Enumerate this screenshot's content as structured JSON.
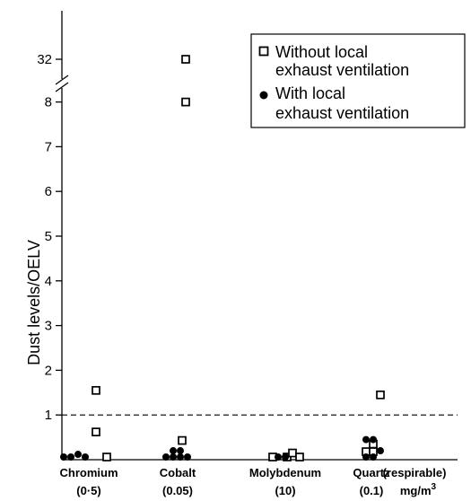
{
  "chart_data": {
    "type": "scatter",
    "ylabel": "Dust levels/OELV",
    "y_axis_break": {
      "below": 8,
      "above": 32
    },
    "yticks": [
      "1",
      "2",
      "3",
      "4",
      "5",
      "6",
      "7",
      "8",
      "32"
    ],
    "reference_line": {
      "y": 1,
      "style": "dashed"
    },
    "categories": [
      {
        "name": "Chromium",
        "oelv": "(0·5)"
      },
      {
        "name": "Cobalt",
        "oelv": "(0.05)"
      },
      {
        "name": "Molybdenum",
        "oelv": "(10)"
      },
      {
        "name": "Quartz",
        "oelv": "(0.1)"
      }
    ],
    "extra_category_note": "(respirable)",
    "unit": "mg/m",
    "unit_superscript": "3",
    "legend": {
      "position": "top-right",
      "without": {
        "line1": "Without local",
        "line2": "exhaust ventilation"
      },
      "with": {
        "line1": "With local",
        "line2": "exhaust ventilation"
      }
    },
    "series": [
      {
        "name": "Without local exhaust ventilation",
        "marker": "open-square",
        "points": [
          {
            "category": "Chromium",
            "y": 1.55
          },
          {
            "category": "Chromium",
            "y": 0.62
          },
          {
            "category": "Chromium",
            "y": 0.02
          },
          {
            "category": "Cobalt",
            "y": 32
          },
          {
            "category": "Cobalt",
            "y": 8
          },
          {
            "category": "Cobalt",
            "y": 0.43
          },
          {
            "category": "Molybdenum",
            "y": 0.02
          },
          {
            "category": "Molybdenum",
            "y": 0.02
          },
          {
            "category": "Molybdenum",
            "y": 0.15
          },
          {
            "category": "Molybdenum",
            "y": 0.02
          },
          {
            "category": "Quartz",
            "y": 1.45
          },
          {
            "category": "Quartz",
            "y": 0.35
          },
          {
            "category": "Quartz",
            "y": 0.18
          },
          {
            "category": "Quartz",
            "y": 0.18
          }
        ]
      },
      {
        "name": "With local exhaust ventilation",
        "marker": "filled-circle",
        "points": [
          {
            "category": "Chromium",
            "y": 0.02
          },
          {
            "category": "Chromium",
            "y": 0.02
          },
          {
            "category": "Chromium",
            "y": 0.12
          },
          {
            "category": "Chromium",
            "y": 0.02
          },
          {
            "category": "Cobalt",
            "y": 0.02
          },
          {
            "category": "Cobalt",
            "y": 0.02
          },
          {
            "category": "Cobalt",
            "y": 0.02
          },
          {
            "category": "Cobalt",
            "y": 0.02
          },
          {
            "category": "Cobalt",
            "y": 0.2
          },
          {
            "category": "Cobalt",
            "y": 0.2
          },
          {
            "category": "Molybdenum",
            "y": 0.02
          },
          {
            "category": "Molybdenum",
            "y": 0.02
          },
          {
            "category": "Quartz",
            "y": 0.45
          },
          {
            "category": "Quartz",
            "y": 0.45
          },
          {
            "category": "Quartz",
            "y": 0.2
          },
          {
            "category": "Quartz",
            "y": 0.02
          },
          {
            "category": "Quartz",
            "y": 0.02
          }
        ]
      }
    ]
  }
}
